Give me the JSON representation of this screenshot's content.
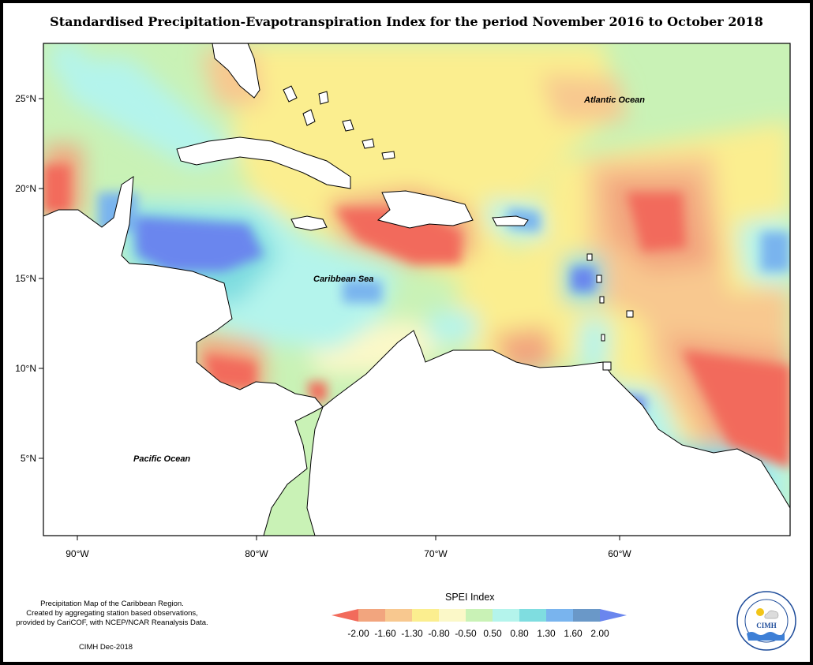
{
  "title": "Standardised Precipitation-Evapotranspiration Index for the period November 2016 to October 2018",
  "axes": {
    "lat_ticks": [
      "25°N",
      "20°N",
      "15°N",
      "10°N",
      "5°N"
    ],
    "lon_ticks": [
      "90°W",
      "80°W",
      "70°W",
      "60°W"
    ]
  },
  "ocean_labels": {
    "atlantic": "Atlantic Ocean",
    "caribbean": "Caribbean Sea",
    "pacific": "Pacific Ocean"
  },
  "legend": {
    "title": "SPEI Index",
    "breaks": [
      "-2.00",
      "-1.60",
      "-1.30",
      "-0.80",
      "-0.50",
      "0.50",
      "0.80",
      "1.30",
      "1.60",
      "2.00"
    ],
    "colors": [
      "#f26b5b",
      "#f2a57e",
      "#f8c88f",
      "#fbee8f",
      "#fbf8c8",
      "#c9f2b6",
      "#b4f4ec",
      "#7fdde0",
      "#79b4ee",
      "#6a98c8",
      "#6a86ee"
    ]
  },
  "notes": {
    "line1": "Precipitation Map of the Caribbean Region.",
    "line2": "Created by aggregating station based observations,",
    "line3": "provided by CariCOF, with NCEP/NCAR Reanalysis Data.",
    "credit": "CIMH Dec-2018"
  },
  "logo": {
    "text": "CIMH",
    "ring_text": "Caribbean Institute for Meteorology and Hydrology"
  }
}
